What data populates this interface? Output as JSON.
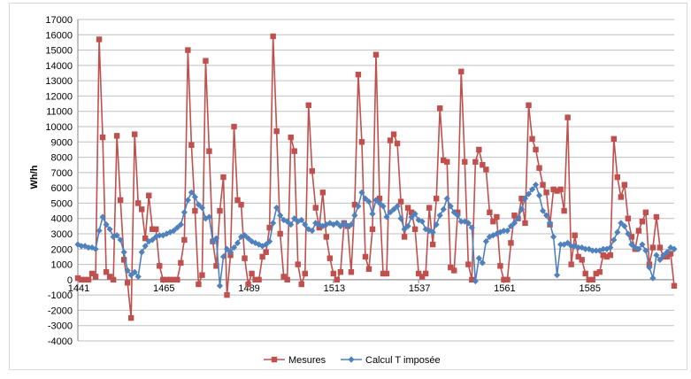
{
  "chart_data": {
    "type": "line",
    "title": "",
    "xlabel": "",
    "ylabel": "Wh/h",
    "ylim": [
      -4000,
      17000
    ],
    "yticks": [
      -4000,
      -3000,
      -2000,
      -1000,
      0,
      1000,
      2000,
      3000,
      4000,
      5000,
      6000,
      7000,
      8000,
      9000,
      10000,
      11000,
      12000,
      13000,
      14000,
      15000,
      16000,
      17000
    ],
    "ytick_labels": [
      "-4000",
      "-3000",
      "-2000",
      "-1000",
      "0",
      "1000",
      "2000",
      "3000",
      "4000",
      "5000",
      "6000",
      "7000",
      "8000",
      "9000",
      "10000",
      "11000",
      "12000",
      "13000",
      "14000",
      "15000",
      "16000",
      "17000"
    ],
    "xlim": [
      1441,
      1609
    ],
    "xticks": [
      1441,
      1465,
      1489,
      1513,
      1537,
      1561,
      1585
    ],
    "xtick_labels": [
      "1441",
      "1465",
      "1489",
      "1513",
      "1537",
      "1561",
      "1585"
    ],
    "grid": "horizontal",
    "legend": "bottom",
    "x": [
      1441,
      1442,
      1443,
      1444,
      1445,
      1446,
      1447,
      1448,
      1449,
      1450,
      1451,
      1452,
      1453,
      1454,
      1455,
      1456,
      1457,
      1458,
      1459,
      1460,
      1461,
      1462,
      1463,
      1464,
      1465,
      1466,
      1467,
      1468,
      1469,
      1470,
      1471,
      1472,
      1473,
      1474,
      1475,
      1476,
      1477,
      1478,
      1479,
      1480,
      1481,
      1482,
      1483,
      1484,
      1485,
      1486,
      1487,
      1488,
      1489,
      1490,
      1491,
      1492,
      1493,
      1494,
      1495,
      1496,
      1497,
      1498,
      1499,
      1500,
      1501,
      1502,
      1503,
      1504,
      1505,
      1506,
      1507,
      1508,
      1509,
      1510,
      1511,
      1512,
      1513,
      1514,
      1515,
      1516,
      1517,
      1518,
      1519,
      1520,
      1521,
      1522,
      1523,
      1524,
      1525,
      1526,
      1527,
      1528,
      1529,
      1530,
      1531,
      1532,
      1533,
      1534,
      1535,
      1536,
      1537,
      1538,
      1539,
      1540,
      1541,
      1542,
      1543,
      1544,
      1545,
      1546,
      1547,
      1548,
      1549,
      1550,
      1551,
      1552,
      1553,
      1554,
      1555,
      1556,
      1557,
      1558,
      1559,
      1560,
      1561,
      1562,
      1563,
      1564,
      1565,
      1566,
      1567,
      1568,
      1569,
      1570,
      1571,
      1572,
      1573,
      1574,
      1575,
      1576,
      1577,
      1578,
      1579,
      1580,
      1581,
      1582,
      1583,
      1584,
      1585,
      1586,
      1587,
      1588,
      1589,
      1590,
      1591,
      1592,
      1593,
      1594,
      1595,
      1596,
      1597,
      1598,
      1599,
      1600,
      1601,
      1602,
      1603,
      1604,
      1605,
      1606,
      1607,
      1608,
      1609
    ],
    "series": [
      {
        "name": "Mesures",
        "color": "#c0504d",
        "marker": "square",
        "values": [
          100,
          0,
          0,
          0,
          400,
          200,
          15700,
          9300,
          500,
          200,
          0,
          9400,
          5200,
          1300,
          -200,
          -2500,
          9500,
          5000,
          4600,
          2700,
          5500,
          3300,
          3300,
          900,
          0,
          0,
          0,
          0,
          0,
          1100,
          2600,
          15000,
          8800,
          4500,
          -300,
          300,
          14300,
          8400,
          2500,
          900,
          4500,
          6700,
          -1000,
          1600,
          10000,
          5200,
          4900,
          1400,
          -300,
          400,
          0,
          0,
          1500,
          1800,
          3400,
          15900,
          9700,
          3000,
          200,
          0,
          9300,
          8400,
          1000,
          -300,
          400,
          11400,
          7100,
          4700,
          3400,
          5700,
          2800,
          1400,
          400,
          0,
          500,
          3700,
          3500,
          500,
          4900,
          13400,
          9000,
          1500,
          700,
          3300,
          14700,
          5300,
          400,
          400,
          9100,
          9500,
          8900,
          5100,
          2800,
          4700,
          4400,
          3300,
          400,
          200,
          400,
          4700,
          2300,
          5300,
          11200,
          7800,
          7700,
          800,
          600,
          4400,
          13600,
          7700,
          1000,
          0,
          7700,
          8500,
          7500,
          7200,
          4400,
          3800,
          4100,
          900,
          0,
          0,
          2400,
          4200,
          4000,
          5300,
          3700,
          11400,
          9200,
          8500,
          7300,
          6200,
          5700,
          3600,
          5900,
          5800,
          5900,
          4500,
          10600,
          1000,
          2900,
          1500,
          1300,
          400,
          0,
          0,
          400,
          500,
          1600,
          1500,
          1600,
          9200,
          6700,
          5400,
          6200,
          4000,
          2800,
          2000,
          3200,
          3800,
          4400,
          1000,
          2100,
          4100,
          2100,
          1500,
          1500,
          1700,
          -400
        ]
      },
      {
        "name": "Calcul T imposée",
        "color": "#4f81bd",
        "marker": "diamond",
        "values": [
          2300,
          2200,
          2200,
          2100,
          2100,
          2000,
          3200,
          4100,
          3600,
          3300,
          2800,
          2900,
          2600,
          1800,
          600,
          300,
          500,
          200,
          1800,
          2200,
          2500,
          2600,
          2800,
          2900,
          2900,
          3000,
          3100,
          3200,
          3400,
          3600,
          4400,
          5200,
          5700,
          5400,
          4900,
          4700,
          4000,
          4100,
          2500,
          2700,
          -400,
          1500,
          2000,
          1800,
          2100,
          2400,
          2800,
          2900,
          2700,
          2500,
          2400,
          2300,
          2200,
          2300,
          2500,
          3700,
          4700,
          4200,
          3900,
          3800,
          3600,
          4000,
          3800,
          3900,
          3600,
          3300,
          3200,
          3700,
          3600,
          3500,
          3600,
          3700,
          3600,
          3700,
          3500,
          3700,
          3500,
          3600,
          4200,
          4800,
          5700,
          5300,
          5100,
          4300,
          5200,
          5000,
          4800,
          4100,
          4400,
          4600,
          4800,
          4000,
          3300,
          3500,
          4100,
          4300,
          3900,
          3800,
          3300,
          3200,
          3100,
          3600,
          4200,
          4600,
          5300,
          4800,
          4400,
          4200,
          3800,
          3800,
          3700,
          3400,
          -100,
          1400,
          1100,
          2500,
          2800,
          2900,
          3000,
          3100,
          3200,
          3200,
          3500,
          3700,
          4000,
          4600,
          5300,
          5600,
          5900,
          6200,
          5500,
          4500,
          4200,
          3700,
          2800,
          300,
          2300,
          2300,
          2400,
          2200,
          2200,
          2100,
          2100,
          2000,
          2000,
          1900,
          1900,
          1900,
          2000,
          2000,
          2100,
          2600,
          3100,
          3700,
          3500,
          3000,
          2300,
          2100,
          2000,
          2300,
          1900,
          800,
          100,
          1600,
          1300,
          1600,
          1800,
          2100,
          2000
        ]
      }
    ]
  }
}
